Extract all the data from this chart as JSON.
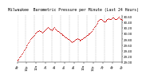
{
  "title": "Milwaukee  Barometric Pressure per Minute (Last 24 Hours)",
  "bg_color": "#ffffff",
  "plot_bg_color": "#ffffff",
  "grid_color": "#aaaaaa",
  "dot_color": "#cc0000",
  "dot_size": 0.4,
  "ylim": [
    29.0,
    30.65
  ],
  "yticks": [
    29.0,
    29.2,
    29.4,
    29.6,
    29.8,
    30.0,
    30.2,
    30.4,
    30.6
  ],
  "pressure_values": [
    29.05,
    29.08,
    29.12,
    29.16,
    29.2,
    29.24,
    29.28,
    29.32,
    29.38,
    29.42,
    29.45,
    29.5,
    29.54,
    29.58,
    29.62,
    29.67,
    29.7,
    29.75,
    29.8,
    29.85,
    29.88,
    29.9,
    29.93,
    29.96,
    30.0,
    30.02,
    30.04,
    30.06,
    30.08,
    30.1,
    30.12,
    30.1,
    30.08,
    30.06,
    30.04,
    30.06,
    30.08,
    30.1,
    30.12,
    30.15,
    30.18,
    30.2,
    30.22,
    30.2,
    30.18,
    30.16,
    30.14,
    30.12,
    30.15,
    30.18,
    30.2,
    30.22,
    30.18,
    30.15,
    30.12,
    30.1,
    30.08,
    30.06,
    30.04,
    30.02,
    30.0,
    29.98,
    29.96,
    29.94,
    29.92,
    29.9,
    29.88,
    29.86,
    29.84,
    29.82,
    29.8,
    29.78,
    29.76,
    29.74,
    29.72,
    29.7,
    29.72,
    29.74,
    29.76,
    29.78,
    29.8,
    29.82,
    29.84,
    29.82,
    29.8,
    29.78,
    29.76,
    29.78,
    29.8,
    29.82,
    29.84,
    29.86,
    29.88,
    29.9,
    29.92,
    29.94,
    29.96,
    29.98,
    30.0,
    30.02,
    30.04,
    30.06,
    30.1,
    30.14,
    30.18,
    30.22,
    30.26,
    30.3,
    30.34,
    30.38,
    30.42,
    30.46,
    30.48,
    30.5,
    30.52,
    30.5,
    30.48,
    30.46,
    30.44,
    30.42,
    30.44,
    30.46,
    30.48,
    30.5,
    30.52,
    30.54,
    30.52,
    30.5,
    30.52,
    30.54,
    30.56,
    30.56,
    30.54,
    30.52,
    30.5,
    30.5,
    30.52,
    30.54,
    30.56,
    30.58,
    30.55,
    30.52,
    30.5,
    30.48
  ],
  "x_tick_labels": [
    "8p",
    "10p",
    "12a",
    "2a",
    "4a",
    "6a",
    "8a",
    "10a",
    "12p",
    "2p",
    "4p",
    "6p"
  ],
  "n_gridlines": 12,
  "title_fontsize": 3.5,
  "tick_fontsize": 2.8
}
